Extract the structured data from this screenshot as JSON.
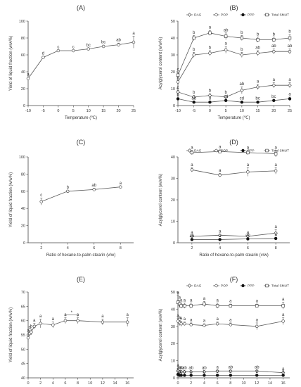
{
  "legend_labels": [
    "DAG",
    "POP",
    "PPP",
    "Total SMUT"
  ],
  "colors": {
    "line": "#5a5a5a",
    "marker_stroke": "#333333",
    "filled": "#111111",
    "axis": "#444444"
  },
  "chart_data": [
    {
      "panel": "(A)",
      "type": "line",
      "xlabel": "Temperature (℃)",
      "ylabel": "Yield of liquid fraction (w/w%)",
      "xlim": [
        -10,
        25
      ],
      "ylim": [
        0,
        100
      ],
      "xticks": [
        -10,
        -5,
        0,
        5,
        10,
        15,
        20,
        25
      ],
      "yticks": [
        0,
        20,
        40,
        60,
        80,
        100
      ],
      "series": [
        {
          "marker": "circle-open",
          "x": [
            -10,
            -5,
            0,
            5,
            10,
            15,
            20,
            25
          ],
          "values": [
            32,
            57,
            65,
            65,
            67,
            70,
            72,
            75
          ],
          "err": [
            1.5,
            1.5,
            1,
            1,
            1,
            1.5,
            2,
            7
          ],
          "labels": [
            "a",
            "d",
            "c",
            "c",
            "bc",
            "bc",
            "ab",
            "a"
          ]
        }
      ]
    },
    {
      "panel": "(B)",
      "type": "line",
      "xlabel": "Temperature (℃)",
      "ylabel": "Acylglycerol content (w/w%)",
      "xlim": [
        -10,
        25
      ],
      "ylim": [
        0,
        50
      ],
      "xticks": [
        -10,
        -5,
        0,
        5,
        10,
        15,
        20,
        25
      ],
      "yticks": [
        0,
        10,
        20,
        30,
        40,
        50
      ],
      "legend": true,
      "series": [
        {
          "marker": "diamond-open",
          "x": [
            -10,
            -5,
            0,
            5,
            10,
            15,
            20,
            25
          ],
          "values": [
            8,
            5,
            6,
            5,
            9,
            11,
            12,
            12
          ],
          "err": [
            1,
            1,
            1,
            1,
            2,
            1.5,
            1.5,
            1.5
          ],
          "labels": [
            "c",
            "b",
            "b",
            "b",
            "ab",
            "a",
            "a",
            "a"
          ]
        },
        {
          "marker": "circle-open",
          "x": [
            -10,
            -5,
            0,
            5,
            10,
            15,
            20,
            25
          ],
          "values": [
            14,
            30,
            31,
            33,
            30,
            31,
            32,
            32
          ],
          "err": [
            1,
            1.5,
            1.5,
            2,
            1.5,
            1.5,
            1.5,
            1.5
          ],
          "labels": [
            "p",
            "b",
            "b",
            "a",
            "b",
            "ab",
            "ab",
            "ab"
          ]
        },
        {
          "marker": "circle-filled",
          "x": [
            -10,
            -5,
            0,
            5,
            10,
            15,
            20,
            25
          ],
          "values": [
            4,
            2,
            2,
            3,
            2,
            2,
            3,
            4
          ],
          "err": [
            0.5,
            0.5,
            0.5,
            0.5,
            0.5,
            0.5,
            0.5,
            1
          ],
          "labels": [
            "b",
            "ab",
            "d",
            "cd",
            "cd",
            "bc",
            "bc",
            "a"
          ]
        },
        {
          "marker": "square-open",
          "x": [
            -10,
            -5,
            0,
            5,
            10,
            15,
            20,
            25
          ],
          "values": [
            18,
            40,
            43,
            41,
            40,
            39,
            39,
            40
          ],
          "err": [
            1.5,
            1.5,
            1.5,
            2,
            1.5,
            1.5,
            1.5,
            2
          ],
          "labels": [
            "c",
            "b",
            "a",
            "ab",
            "b",
            "b",
            "b",
            "b"
          ]
        }
      ]
    },
    {
      "panel": "(C)",
      "type": "line",
      "xlabel": "Ratio of hexane-to-palm stearin (v/w)",
      "ylabel": "Yield of liquid fraction (w/w%)",
      "xlim": [
        1,
        9
      ],
      "ylim": [
        0,
        100
      ],
      "xticks": [
        2,
        4,
        6,
        8
      ],
      "yticks": [
        0,
        20,
        40,
        60,
        80,
        100
      ],
      "series": [
        {
          "marker": "circle-open",
          "x": [
            2,
            4,
            6,
            8
          ],
          "values": [
            48,
            60,
            62,
            65
          ],
          "err": [
            4,
            1,
            1.5,
            1
          ],
          "labels": [
            "c",
            "b",
            "ab",
            "a"
          ]
        }
      ]
    },
    {
      "panel": "(D)",
      "type": "line",
      "xlabel": "Ratio of hexane-to-palm stearin (v/w)",
      "ylabel": "Acylglycerol content (w/w%)",
      "xlim": [
        1,
        9
      ],
      "ylim": [
        0,
        40
      ],
      "xticks": [
        2,
        4,
        6,
        8
      ],
      "yticks": [
        0,
        10,
        20,
        30,
        40
      ],
      "legend": true,
      "series": [
        {
          "marker": "diamond-open",
          "x": [
            2,
            4,
            6,
            8
          ],
          "values": [
            3,
            3.5,
            3,
            4.5
          ],
          "err": [
            0.5,
            0.5,
            0.5,
            1.5
          ],
          "labels": [
            "a",
            "a",
            "a",
            "a"
          ]
        },
        {
          "marker": "circle-open",
          "x": [
            2,
            4,
            6,
            8
          ],
          "values": [
            34,
            31.5,
            33,
            33.5
          ],
          "err": [
            1,
            0.8,
            2,
            1.5
          ],
          "labels": [
            "a",
            "a",
            "a",
            "a"
          ]
        },
        {
          "marker": "circle-filled",
          "x": [
            2,
            4,
            6,
            8
          ],
          "values": [
            1.5,
            1.5,
            1.8,
            2
          ],
          "err": [
            0.3,
            0.3,
            0.3,
            0.5
          ],
          "labels": [
            "ab",
            "a",
            "ab",
            "a"
          ]
        },
        {
          "marker": "square-open",
          "x": [
            2,
            4,
            6,
            8
          ],
          "values": [
            42,
            42.5,
            42,
            41.5
          ],
          "err": [
            1,
            0.8,
            1,
            1.5
          ],
          "labels": [
            "a",
            "a",
            "a",
            "a"
          ]
        }
      ]
    },
    {
      "panel": "(E)",
      "type": "line",
      "xlabel": "Crystallization time (h)",
      "ylabel": "Yield of liquid fraction (w/w%)",
      "xlim": [
        0,
        17
      ],
      "ylim": [
        40,
        70
      ],
      "xticks": [
        0,
        2,
        4,
        6,
        8,
        10,
        12,
        14,
        16
      ],
      "yticks": [
        40,
        45,
        50,
        55,
        60,
        65,
        70
      ],
      "series": [
        {
          "marker": "circle-open",
          "x": [
            0,
            0.25,
            0.5,
            1,
            2,
            4,
            6,
            8,
            12,
            16
          ],
          "values": [
            54,
            55.5,
            56,
            58,
            59,
            58.5,
            60,
            60,
            59.5,
            59.5
          ],
          "err": [
            1.5,
            1,
            1,
            1,
            1.5,
            1,
            1,
            1,
            1,
            1.5
          ],
          "labels": [
            "a",
            "b",
            "b",
            "a",
            "a",
            "a",
            "a",
            "a",
            "a",
            "a"
          ]
        }
      ],
      "annotation": "*"
    },
    {
      "panel": "(F)",
      "type": "line",
      "xlabel": "Crystallization time (h)",
      "ylabel": "Acylglycerol content (w/w%)",
      "xlim": [
        0,
        17
      ],
      "ylim": [
        0,
        50
      ],
      "xticks": [
        0,
        2,
        4,
        6,
        8,
        10,
        12,
        14,
        16
      ],
      "yticks": [
        0,
        10,
        20,
        30,
        40,
        50
      ],
      "legend": true,
      "series": [
        {
          "marker": "diamond-open",
          "x": [
            0,
            0.25,
            0.5,
            1,
            2,
            4,
            6,
            8,
            12,
            16
          ],
          "values": [
            4,
            3.5,
            3.5,
            3.5,
            3.5,
            3.5,
            4,
            4,
            4,
            3
          ],
          "err": [
            1.5,
            0.5,
            0.5,
            0.5,
            0.5,
            0.5,
            0.5,
            0.5,
            0.5,
            0.5
          ],
          "labels": [
            "a",
            "ab",
            "ab",
            "ab",
            "ab",
            "ab",
            "a",
            "ab",
            "ab",
            "a"
          ]
        },
        {
          "marker": "circle-open",
          "x": [
            0,
            0.25,
            0.5,
            1,
            2,
            4,
            6,
            8,
            12,
            16
          ],
          "values": [
            33,
            32,
            31.5,
            31.5,
            31,
            30.5,
            31.5,
            31,
            30,
            33
          ],
          "err": [
            1.5,
            1.5,
            1.5,
            1,
            1,
            1,
            1,
            1,
            2,
            2
          ],
          "labels": [
            "a",
            "a",
            "a",
            "a",
            "a",
            "a",
            "a",
            "a",
            "a",
            "a"
          ]
        },
        {
          "marker": "circle-filled",
          "x": [
            0,
            0.25,
            0.5,
            1,
            2,
            4,
            6,
            8,
            12,
            16
          ],
          "values": [
            2,
            1.5,
            1.5,
            1.5,
            1.5,
            1.5,
            1.5,
            1.5,
            1.5,
            1.5
          ],
          "err": [
            0.5,
            0.3,
            0.3,
            0.3,
            0.3,
            0.3,
            0.3,
            0.3,
            0.3,
            0.5
          ],
          "labels": [
            "b",
            "b",
            "b",
            "b",
            "b",
            "b",
            "b",
            "b",
            "b",
            "a"
          ]
        },
        {
          "marker": "square-open",
          "x": [
            0,
            0.25,
            0.5,
            1,
            2,
            4,
            6,
            8,
            12,
            16
          ],
          "values": [
            44,
            43,
            42,
            42,
            42,
            43,
            42,
            42,
            42,
            42
          ],
          "err": [
            4,
            2,
            1.5,
            1.5,
            1.5,
            1.5,
            1.5,
            1,
            1,
            2
          ],
          "labels": [
            "a",
            "a",
            "a",
            "a",
            "a",
            "a",
            "a",
            "a",
            "a",
            "a"
          ]
        }
      ]
    }
  ]
}
